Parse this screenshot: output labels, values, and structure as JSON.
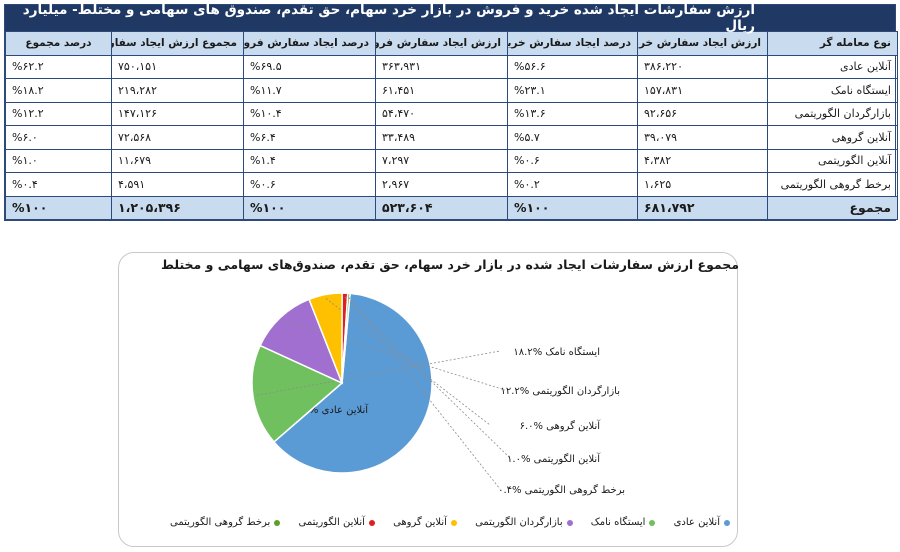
{
  "table": {
    "title": "ارزش سفارشات ایجاد شده خرید و فروش در بازار خرد سهام، حق تقدم، صندوق های سهامی و مختلط- میلیارد ریال",
    "headers": [
      "نوع معامله گر",
      "ارزش ایجاد سفارش خرید",
      "درصد ایجاد سفارش خرید",
      "ارزش ایجاد سفارش فروش",
      "درصد ایجاد سفارش فروش",
      "مجموع ارزش ایجاد سفارش",
      "درصد مجموع"
    ],
    "rows": [
      [
        "آنلاین عادی",
        "۳۸۶،۲۲۰",
        "%۵۶.۶",
        "۳۶۳،۹۳۱",
        "%۶۹.۵",
        "۷۵۰،۱۵۱",
        "%۶۲.۲"
      ],
      [
        "ایستگاه نامک",
        "۱۵۷،۸۳۱",
        "%۲۳.۱",
        "۶۱،۴۵۱",
        "%۱۱.۷",
        "۲۱۹،۲۸۲",
        "%۱۸.۲"
      ],
      [
        "بازارگردان الگوریتمی",
        "۹۲،۶۵۶",
        "%۱۳.۶",
        "۵۴،۴۷۰",
        "%۱۰.۴",
        "۱۴۷،۱۲۶",
        "%۱۲.۲"
      ],
      [
        "آنلاین گروهی",
        "۳۹،۰۷۹",
        "%۵.۷",
        "۳۳،۴۸۹",
        "%۶.۴",
        "۷۲،۵۶۸",
        "%۶.۰"
      ],
      [
        "آنلاین الگوریتمی",
        "۴،۳۸۲",
        "%۰.۶",
        "۷،۲۹۷",
        "%۱.۴",
        "۱۱،۶۷۹",
        "%۱.۰"
      ],
      [
        "برخط گروهی الگوریتمی",
        "۱،۶۲۵",
        "%۰.۲",
        "۲،۹۶۷",
        "%۰.۶",
        "۴،۵۹۱",
        "%۰.۴"
      ]
    ],
    "total": [
      "مجموع",
      "۶۸۱،۷۹۲",
      "%۱۰۰",
      "۵۲۳،۶۰۴",
      "%۱۰۰",
      "۱،۲۰۵،۳۹۶",
      "%۱۰۰"
    ]
  },
  "chart_data": {
    "type": "pie",
    "title": "مجموع ارزش سفارشات ایجاد شده در بازار خرد سهام، حق تقدم، صندوق‌های سهامی و مختلط",
    "slices": [
      {
        "name": "آنلاین عادی",
        "value": 62.2,
        "label": "آنلاین عادی %۶۲.۲",
        "color": "#5b9bd5"
      },
      {
        "name": "ایستگاه نامک",
        "value": 18.2,
        "label": "ایستگاه نامک %۱۸.۲",
        "color": "#70c060"
      },
      {
        "name": "بازارگردان الگوریتمی",
        "value": 12.2,
        "label": "بازارگردان الگوریتمی %۱۲.۲",
        "color": "#a16fd0"
      },
      {
        "name": "آنلاین گروهی",
        "value": 6.0,
        "label": "آنلاین گروهی %۶.۰",
        "color": "#ffc000"
      },
      {
        "name": "آنلاین الگوریتمی",
        "value": 1.0,
        "label": "آنلاین الگوریتمی %۱.۰",
        "color": "#e02020"
      },
      {
        "name": "برخط گروهی الگوریتمی",
        "value": 0.4,
        "label": "برخط گروهی الگوریتمی %۰.۴",
        "color": "#5aa02c"
      }
    ],
    "legend_position": "bottom"
  }
}
